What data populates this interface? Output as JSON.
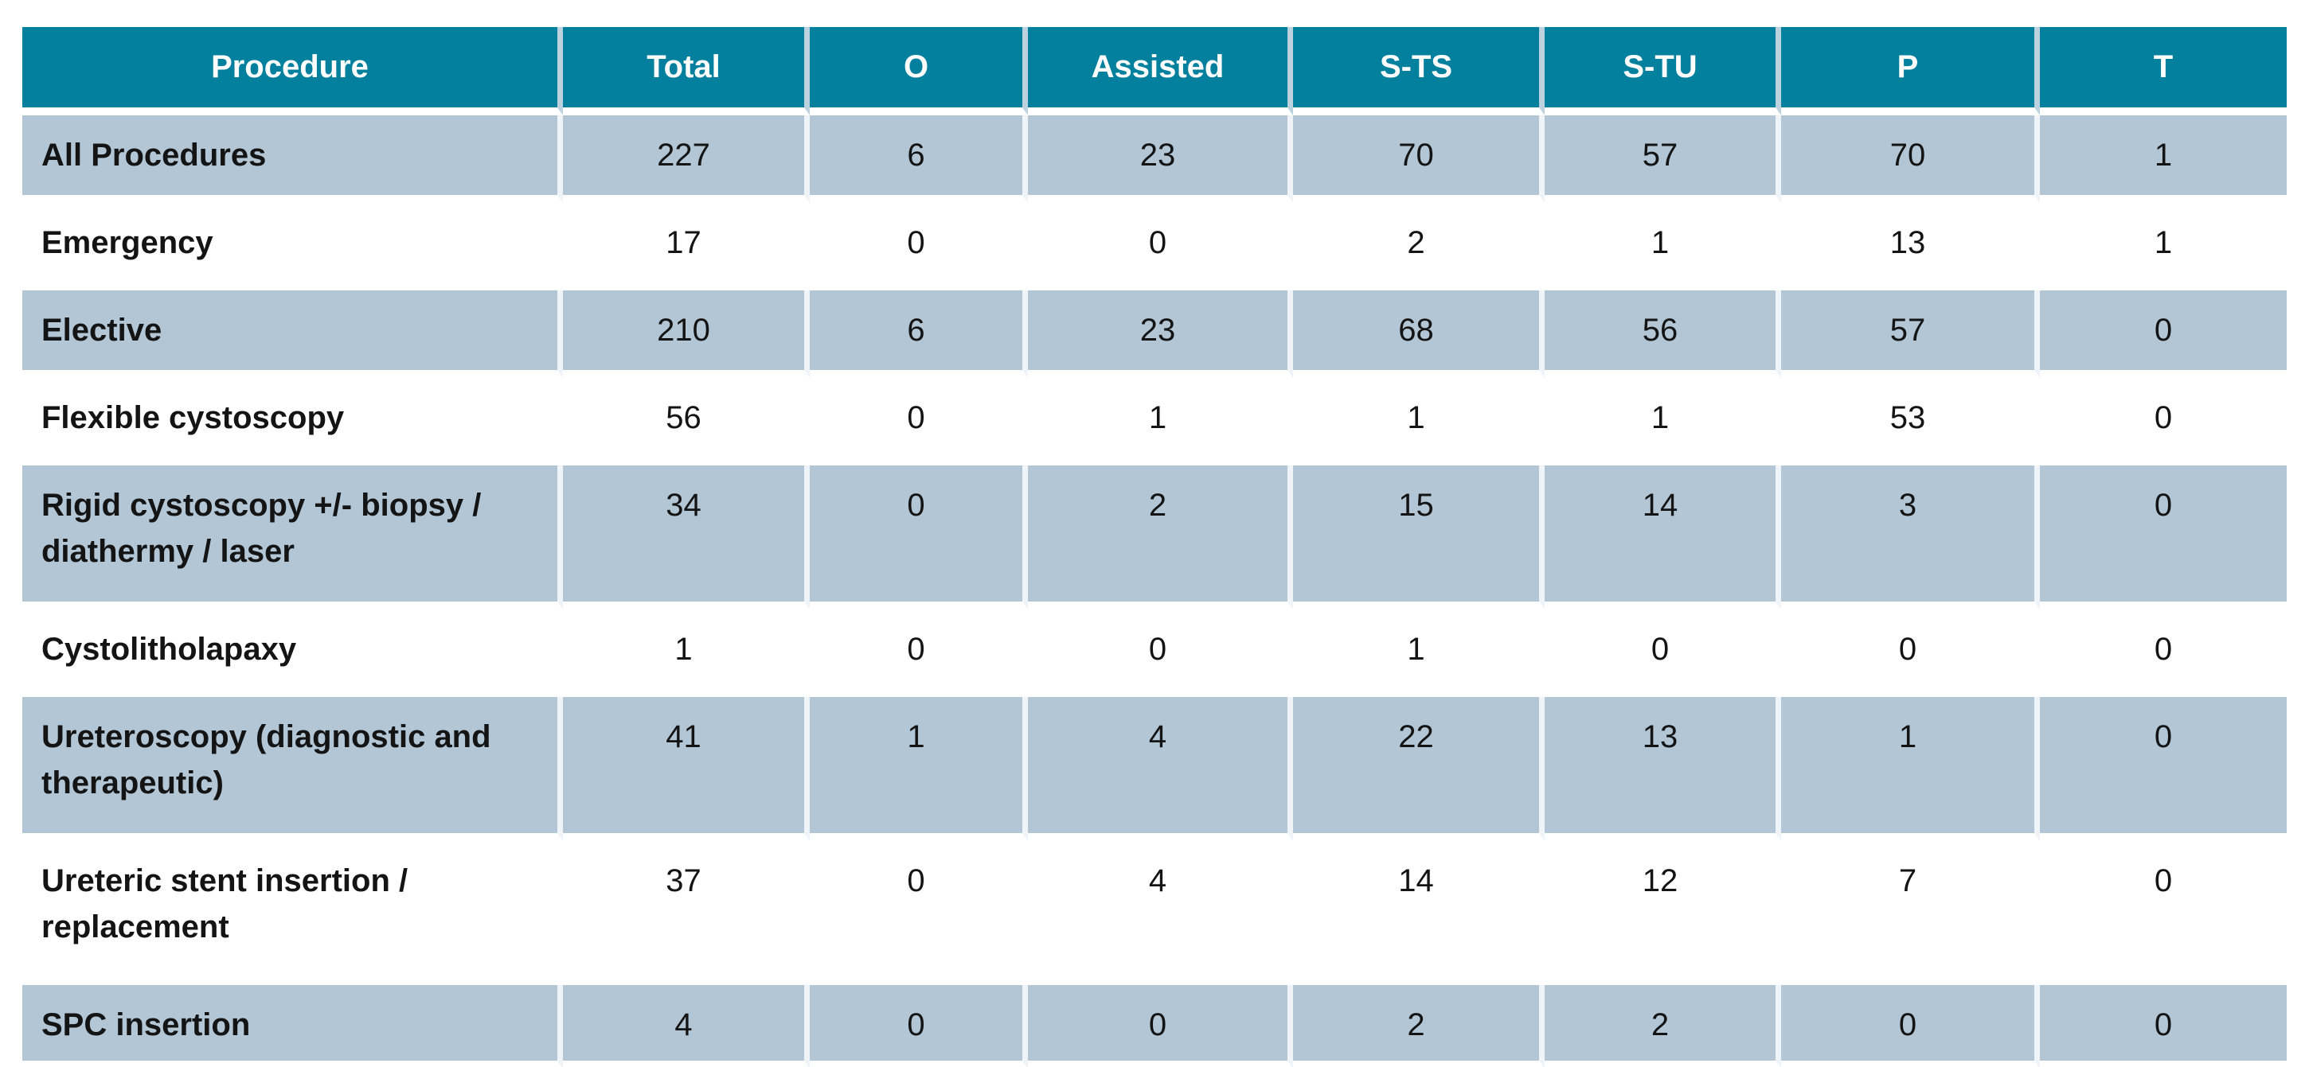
{
  "chart_data": {
    "type": "table",
    "columns": [
      "Procedure",
      "Total",
      "O",
      "Assisted",
      "S-TS",
      "S-TU",
      "P",
      "T"
    ],
    "rows": [
      {
        "procedure": "All Procedures",
        "values": [
          227,
          6,
          23,
          70,
          57,
          70,
          1
        ]
      },
      {
        "procedure": "Emergency",
        "values": [
          17,
          0,
          0,
          2,
          1,
          13,
          1
        ]
      },
      {
        "procedure": "Elective",
        "values": [
          210,
          6,
          23,
          68,
          56,
          57,
          0
        ]
      },
      {
        "procedure": "Flexible cystoscopy",
        "values": [
          56,
          0,
          1,
          1,
          1,
          53,
          0
        ]
      },
      {
        "procedure": "Rigid cystoscopy +/- biopsy / diathermy / laser",
        "values": [
          34,
          0,
          2,
          15,
          14,
          3,
          0
        ]
      },
      {
        "procedure": "Cystolitholapaxy",
        "values": [
          1,
          0,
          0,
          1,
          0,
          0,
          0
        ]
      },
      {
        "procedure": "Ureteroscopy (diagnostic and therapeutic)",
        "values": [
          41,
          1,
          4,
          22,
          13,
          1,
          0
        ]
      },
      {
        "procedure": "Ureteric stent insertion / replacement",
        "values": [
          37,
          0,
          4,
          14,
          12,
          7,
          0
        ]
      },
      {
        "procedure": "SPC insertion",
        "values": [
          4,
          0,
          0,
          2,
          2,
          0,
          0
        ]
      }
    ],
    "layout": {
      "grid": "white gaps between cells",
      "row_striping": "alternating shaded starting with first data row",
      "header_position": "top"
    }
  },
  "colors": {
    "header_bg": "#04809f",
    "header_text": "#ffffff",
    "shaded_row_bg": "#b2c6d5",
    "plain_row_bg": "#ffffff",
    "body_text": "#141414",
    "cell_gap": "#ffffff"
  }
}
